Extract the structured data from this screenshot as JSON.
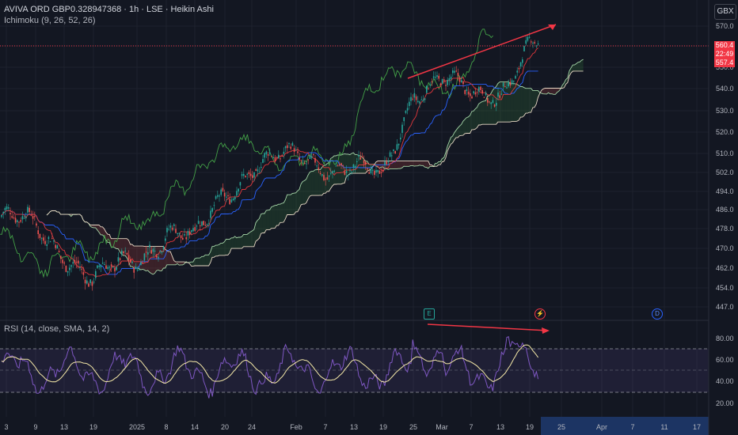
{
  "header": {
    "title": "AVIVA ORD GBP0.328947368 · 1h · LSE · Heikin Ashi",
    "indicator": "Ichimoku (9, 26, 52, 26)",
    "currency": "GBX"
  },
  "price_boxes": {
    "last": "560.4",
    "countdown": "22:49",
    "prev": "557.4"
  },
  "events": {
    "earnings": "E",
    "split": "⚡",
    "dividend": "D"
  },
  "rsi": {
    "label": "RSI (14, close, SMA, 14, 2)",
    "ticks": [
      "80.00",
      "60.00",
      "40.00",
      "20.00"
    ]
  },
  "colors": {
    "background": "#131722",
    "bull": "#26a69a",
    "bear": "#ef5350",
    "tenkan": "#e0373b",
    "kijun": "#2962ff",
    "chikou": "#43a047",
    "span_a": "#a5d6a7",
    "span_b": "#e8d9c5",
    "rsi_line": "#7e57c2",
    "rsi_sma": "#f5e9a8",
    "annotation": "#f23645"
  },
  "chart_data": [
    {
      "type": "candlestick",
      "y_ticks": [
        570.0,
        560.0,
        550.0,
        540.0,
        530.0,
        520.0,
        510.0,
        502.0,
        494.0,
        486.0,
        478.0,
        470.0,
        462.0,
        454.0,
        447.0
      ],
      "ylim": [
        447,
        575
      ],
      "x_ticks": [
        "3",
        "9",
        "13",
        "19",
        "2025",
        "8",
        "14",
        "20",
        "24",
        "Feb",
        "7",
        "13",
        "19",
        "25",
        "Mar",
        "7",
        "13",
        "19",
        "25",
        "Apr",
        "7",
        "11",
        "17"
      ],
      "last_price": 560.4,
      "series_close_approx": [
        {
          "x": "3",
          "y": 482
        },
        {
          "x": "9",
          "y": 478
        },
        {
          "x": "13",
          "y": 470
        },
        {
          "x": "19",
          "y": 456
        },
        {
          "x": "2025",
          "y": 466
        },
        {
          "x": "8",
          "y": 478
        },
        {
          "x": "14",
          "y": 472
        },
        {
          "x": "20",
          "y": 494
        },
        {
          "x": "24",
          "y": 505
        },
        {
          "x": "Feb",
          "y": 508
        },
        {
          "x": "7",
          "y": 506
        },
        {
          "x": "13",
          "y": 504
        },
        {
          "x": "19",
          "y": 498
        },
        {
          "x": "25",
          "y": 540
        },
        {
          "x": "Mar",
          "y": 544
        },
        {
          "x": "7",
          "y": 536
        },
        {
          "x": "13",
          "y": 540
        },
        {
          "x": "19",
          "y": 560
        }
      ],
      "divergence_line": {
        "from": {
          "x": "25",
          "y": 548
        },
        "to": {
          "x": "19",
          "y": 571
        }
      }
    },
    {
      "type": "line",
      "title": "RSI (14, close, SMA, 14, 2)",
      "ylim": [
        15,
        90
      ],
      "bands": [
        70,
        50,
        30
      ],
      "y_ticks": [
        80,
        60,
        40,
        20
      ],
      "divergence_line": {
        "from": {
          "x": "Mar",
          "y": 85
        },
        "to": {
          "x": "19",
          "y": 80
        }
      }
    }
  ]
}
